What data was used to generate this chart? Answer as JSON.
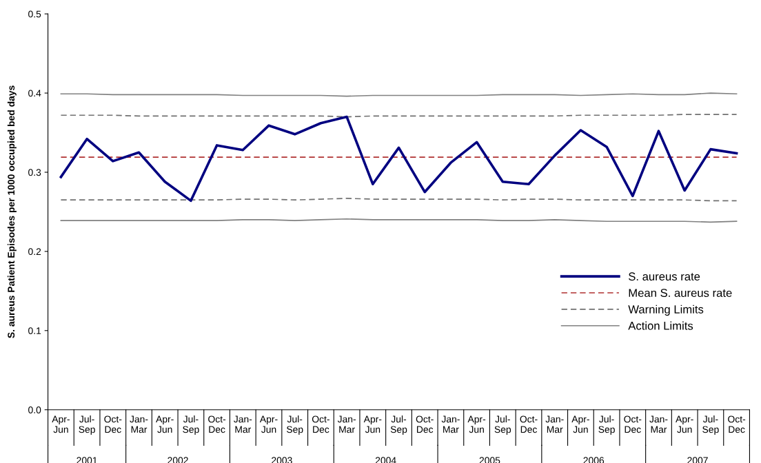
{
  "chart_data": {
    "type": "line",
    "ylabel": "S. aureus Patient Episodes per 1000 occupied bed days",
    "categories": [
      "Apr-Jun",
      "Jul-Sep",
      "Oct-Dec",
      "Jan-Mar",
      "Apr-Jun",
      "Jul-Sep",
      "Oct-Dec",
      "Jan-Mar",
      "Apr-Jun",
      "Jul-Sep",
      "Oct-Dec",
      "Jan-Mar",
      "Apr-Jun",
      "Jul-Sep",
      "Oct-Dec",
      "Jan-Mar",
      "Apr-Jun",
      "Jul-Sep",
      "Oct-Dec",
      "Jan-Mar",
      "Apr-Jun",
      "Jul-Sep",
      "Oct-Dec",
      "Jan-Mar",
      "Apr-Jun",
      "Jul-Sep",
      "Oct-Dec"
    ],
    "annotations": [
      "2001",
      "2002",
      "2003",
      "2004",
      "2005",
      "2006",
      "2007"
    ],
    "series": [
      {
        "name": "S. aureus rate",
        "color": "#000080",
        "line_style": "solid",
        "values": [
          0.294,
          0.342,
          0.314,
          0.325,
          0.288,
          0.264,
          0.334,
          0.328,
          0.359,
          0.348,
          0.362,
          0.37,
          0.285,
          0.331,
          0.275,
          0.312,
          0.338,
          0.288,
          0.285,
          0.321,
          0.353,
          0.332,
          0.27,
          0.352,
          0.277,
          0.329,
          0.324
        ]
      },
      {
        "name": "Mean S. aureus rate",
        "color": "#b03030",
        "line_style": "dashed",
        "values": [
          0.319,
          0.319,
          0.319,
          0.319,
          0.319,
          0.319,
          0.319,
          0.319,
          0.319,
          0.319,
          0.319,
          0.319,
          0.319,
          0.319,
          0.319,
          0.319,
          0.319,
          0.319,
          0.319,
          0.319,
          0.319,
          0.319,
          0.319,
          0.319,
          0.319,
          0.319,
          0.319
        ]
      },
      {
        "name": "Warning Limits",
        "color": "#707070",
        "line_style": "dashed",
        "values": [
          0.372,
          0.372,
          0.372,
          0.371,
          0.371,
          0.371,
          0.371,
          0.371,
          0.371,
          0.371,
          0.371,
          0.37,
          0.371,
          0.371,
          0.371,
          0.371,
          0.371,
          0.371,
          0.371,
          0.371,
          0.372,
          0.372,
          0.372,
          0.372,
          0.373,
          0.373,
          0.373
        ]
      },
      {
        "name": null,
        "color": "#707070",
        "line_style": "dashed",
        "values": [
          0.265,
          0.265,
          0.265,
          0.265,
          0.265,
          0.265,
          0.265,
          0.266,
          0.266,
          0.265,
          0.266,
          0.267,
          0.266,
          0.266,
          0.266,
          0.266,
          0.266,
          0.265,
          0.266,
          0.266,
          0.265,
          0.265,
          0.265,
          0.265,
          0.265,
          0.264,
          0.264
        ]
      },
      {
        "name": "Action Limits",
        "color": "#808080",
        "line_style": "solid",
        "values": [
          0.399,
          0.399,
          0.398,
          0.398,
          0.398,
          0.398,
          0.398,
          0.397,
          0.397,
          0.397,
          0.397,
          0.396,
          0.397,
          0.397,
          0.397,
          0.397,
          0.397,
          0.398,
          0.398,
          0.398,
          0.397,
          0.398,
          0.399,
          0.398,
          0.398,
          0.4,
          0.399
        ]
      },
      {
        "name": null,
        "color": "#808080",
        "line_style": "solid",
        "values": [
          0.239,
          0.239,
          0.239,
          0.239,
          0.239,
          0.239,
          0.239,
          0.24,
          0.24,
          0.239,
          0.24,
          0.241,
          0.24,
          0.24,
          0.24,
          0.24,
          0.24,
          0.239,
          0.239,
          0.24,
          0.239,
          0.238,
          0.238,
          0.238,
          0.238,
          0.237,
          0.238
        ]
      }
    ],
    "ylim": [
      0,
      0.5
    ],
    "yticks": [
      {
        "value": 0,
        "label": "0.0"
      },
      {
        "value": 0.1,
        "label": "0.1"
      },
      {
        "value": 0.2,
        "label": "0.2"
      },
      {
        "value": 0.3,
        "label": "0.3"
      },
      {
        "value": 0.4,
        "label": "0.4"
      },
      {
        "value": 0.5,
        "label": "0.5"
      }
    ],
    "grid": false,
    "legend": "bottom right",
    "marker": "none"
  }
}
